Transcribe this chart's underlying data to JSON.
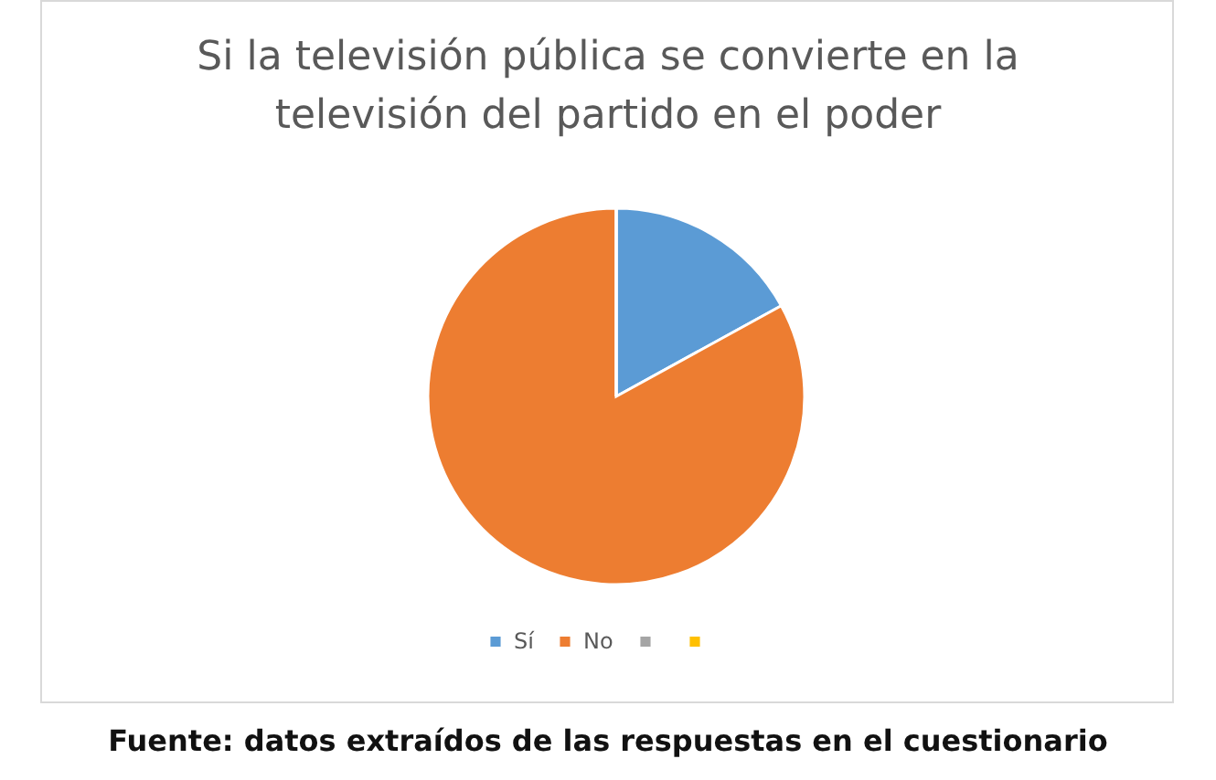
{
  "chart_data": {
    "type": "pie",
    "title": "Si la televisión pública se convierte en la televisión del partido en el poder",
    "categories": [
      "Sí",
      "No",
      null,
      null
    ],
    "values": [
      17,
      83,
      0,
      0
    ],
    "colors": [
      "#5b9bd5",
      "#ed7d31",
      "#a5a5a5",
      "#ffc000"
    ],
    "legend": "bottom",
    "annotations": [
      "Fuente: datos extraídos de las respuestas en el cuestionario"
    ]
  }
}
